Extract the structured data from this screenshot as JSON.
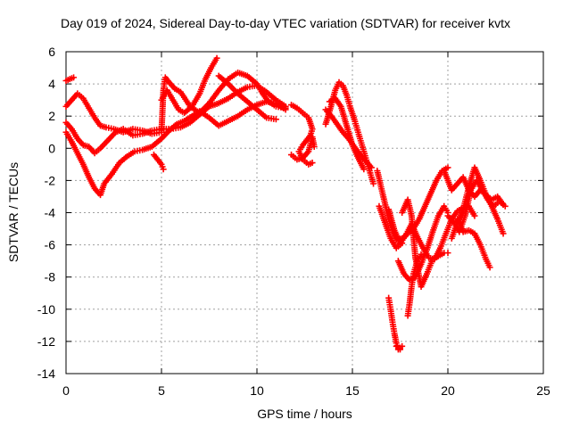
{
  "chart_data": {
    "type": "scatter",
    "title": "Day 019 of 2024, Sidereal Day-to-day VTEC variation (SDTVAR) for receiver kvtx",
    "xlabel": "GPS time / hours",
    "ylabel": "SDTVAR / TECUs",
    "xlim": [
      0,
      25
    ],
    "ylim": [
      -14,
      6
    ],
    "xticks": [
      0,
      5,
      10,
      15,
      20,
      25
    ],
    "yticks": [
      6,
      4,
      2,
      0,
      -2,
      -4,
      -6,
      -8,
      -10,
      -12,
      -14
    ],
    "grid": true,
    "marker": "+",
    "color": "#ff0000",
    "series": [
      {
        "x": [
          0.0,
          0.2,
          0.4
        ],
        "y": [
          4.2,
          4.3,
          4.4
        ]
      },
      {
        "x": [
          0.0,
          0.3,
          0.6,
          0.9,
          1.2,
          1.5,
          1.8,
          2.1,
          2.5,
          3.0,
          3.5,
          4.0,
          4.5,
          5.0,
          5.1,
          5.2,
          5.4,
          5.7,
          6.0,
          6.5,
          7.0,
          7.5,
          8.0,
          8.5,
          9.0,
          9.5,
          10.0,
          10.3,
          10.6,
          11.0,
          11.5
        ],
        "y": [
          2.6,
          3.0,
          3.4,
          3.1,
          2.5,
          1.9,
          1.4,
          1.3,
          1.2,
          1.0,
          1.2,
          1.1,
          0.9,
          1.0,
          3.6,
          4.4,
          4.1,
          3.7,
          3.5,
          2.6,
          2.2,
          2.8,
          3.6,
          4.3,
          4.7,
          4.5,
          4.0,
          3.4,
          2.9,
          2.6,
          2.5
        ]
      },
      {
        "x": [
          0.0,
          0.3,
          0.6,
          0.9,
          1.2,
          1.5,
          1.8,
          2.2,
          2.6,
          3.0,
          3.5,
          4.0,
          4.5,
          5.0,
          5.5,
          6.0,
          6.5,
          7.0,
          7.5,
          8.0,
          8.5,
          9.0,
          9.5,
          10.0,
          10.5,
          11.0,
          11.5
        ],
        "y": [
          1.6,
          1.2,
          0.6,
          0.2,
          0.1,
          -0.3,
          0.0,
          0.5,
          1.0,
          1.2,
          0.8,
          0.9,
          1.1,
          1.2,
          1.2,
          1.3,
          1.6,
          2.1,
          2.6,
          2.8,
          3.1,
          3.5,
          3.8,
          3.9,
          3.5,
          3.0,
          2.6
        ]
      },
      {
        "x": [
          0.0,
          0.3,
          0.6,
          0.9,
          1.2,
          1.5,
          1.8,
          2.0,
          2.4,
          2.8,
          3.2,
          3.6,
          4.0,
          4.5,
          5.0,
          5.4,
          5.8,
          6.2,
          6.6,
          7.0,
          7.5,
          8.0,
          8.5,
          9.0,
          9.5,
          10.0,
          10.5,
          11.0,
          11.5
        ],
        "y": [
          1.0,
          0.4,
          -0.3,
          -1.0,
          -1.8,
          -2.5,
          -2.9,
          -2.2,
          -1.6,
          -0.9,
          -0.5,
          -0.2,
          -0.1,
          0.1,
          0.6,
          1.1,
          1.5,
          1.7,
          2.0,
          2.3,
          1.9,
          1.4,
          1.7,
          2.0,
          2.4,
          2.7,
          2.9,
          2.8,
          2.4
        ]
      },
      {
        "x": [
          5.0,
          5.3,
          5.6,
          5.9,
          6.2,
          6.6,
          7.0,
          7.3,
          7.6,
          7.9
        ],
        "y": [
          3.0,
          3.6,
          3.0,
          2.4,
          2.2,
          2.6,
          3.4,
          4.3,
          5.0,
          5.6
        ]
      },
      {
        "x": [
          8.0,
          8.5,
          9.0,
          9.5,
          10.0,
          10.5,
          11.0
        ],
        "y": [
          4.5,
          4.0,
          3.4,
          2.9,
          2.4,
          1.9,
          1.8
        ]
      },
      {
        "x": [
          4.6,
          5.0,
          5.1
        ],
        "y": [
          -0.4,
          -1.0,
          -1.3
        ]
      },
      {
        "x": [
          11.8,
          12.1,
          12.4,
          12.7,
          12.9,
          12.8,
          12.4,
          12.2,
          12.4,
          12.7,
          12.9
        ],
        "y": [
          2.7,
          2.5,
          2.2,
          1.9,
          1.2,
          0.8,
          0.2,
          -0.2,
          -0.7,
          -1.0,
          -0.9
        ]
      },
      {
        "x": [
          11.8,
          12.1,
          12.4,
          12.7,
          12.9,
          13.0
        ],
        "y": [
          -0.4,
          -0.7,
          -0.6,
          -0.2,
          0.7,
          0.1
        ]
      },
      {
        "x": [
          13.6,
          13.9,
          14.1,
          14.3,
          14.5,
          14.7,
          14.9,
          15.1,
          15.3,
          15.5,
          15.7,
          15.9,
          16.1
        ],
        "y": [
          1.5,
          2.7,
          3.6,
          4.1,
          3.9,
          3.3,
          2.5,
          1.8,
          1.0,
          0.2,
          -0.6,
          -1.4,
          -2.2
        ]
      },
      {
        "x": [
          13.6,
          13.9,
          14.2,
          14.5,
          14.8,
          15.1,
          15.4,
          15.7,
          16.0
        ],
        "y": [
          2.4,
          2.0,
          1.5,
          1.0,
          0.6,
          0.1,
          -0.4,
          -0.8,
          -1.2
        ]
      },
      {
        "x": [
          13.8,
          14.1,
          14.4,
          14.7,
          15.0,
          15.3,
          15.6
        ],
        "y": [
          2.9,
          3.1,
          2.6,
          1.4,
          0.2,
          -0.6,
          -1.3
        ]
      },
      {
        "x": [
          16.3,
          16.5,
          16.7,
          16.9,
          17.1,
          17.3,
          17.6,
          17.9,
          18.2,
          18.5,
          18.8,
          19.1,
          19.4,
          19.7,
          20.0
        ],
        "y": [
          -1.4,
          -2.4,
          -3.4,
          -4.4,
          -5.2,
          -5.7,
          -5.6,
          -5.3,
          -5.0,
          -4.4,
          -3.6,
          -2.8,
          -2.0,
          -1.4,
          -1.2
        ]
      },
      {
        "x": [
          16.9,
          17.2,
          17.5,
          17.8,
          18.1,
          18.4,
          18.7,
          19.0,
          19.3,
          19.6,
          19.9,
          20.2,
          20.5,
          20.8,
          21.1,
          21.4
        ],
        "y": [
          -3.8,
          -5.1,
          -5.9,
          -5.4,
          -4.7,
          -5.5,
          -6.2,
          -6.8,
          -6.9,
          -6.2,
          -5.3,
          -4.4,
          -3.9,
          -3.7,
          -3.6,
          -4.2
        ]
      },
      {
        "x": [
          16.4,
          16.7,
          17.0,
          17.3,
          17.6
        ],
        "y": [
          -3.6,
          -4.6,
          -5.6,
          -6.2,
          -5.9
        ]
      },
      {
        "x": [
          17.6,
          17.9,
          18.1,
          18.3,
          18.6,
          18.9,
          19.2,
          19.5,
          19.8,
          20.0
        ],
        "y": [
          -4.0,
          -3.2,
          -4.2,
          -6.8,
          -8.6,
          -7.8,
          -6.9,
          -6.7,
          -6.5,
          -6.5
        ]
      },
      {
        "x": [
          17.4,
          17.7,
          18.0,
          18.3,
          18.6,
          18.9,
          19.2,
          19.5,
          19.8,
          20.0
        ],
        "y": [
          -7.0,
          -7.8,
          -8.2,
          -8.0,
          -7.2,
          -6.3,
          -5.2,
          -4.2,
          -3.6,
          -4.0
        ]
      },
      {
        "x": [
          16.9,
          17.0,
          17.1,
          17.2,
          17.3,
          17.4,
          17.5
        ],
        "y": [
          -9.3,
          -10.0,
          -10.8,
          -11.5,
          -12.1,
          -12.4,
          -12.5
        ]
      },
      {
        "x": [
          17.3,
          17.4,
          17.5,
          17.6
        ],
        "y": [
          -12.3,
          -12.5,
          -12.4,
          -12.3
        ]
      },
      {
        "x": [
          17.9,
          18.0,
          18.1,
          18.2,
          18.4,
          18.6
        ],
        "y": [
          -10.4,
          -9.6,
          -8.6,
          -7.8,
          -7.0,
          -6.6
        ]
      },
      {
        "x": [
          20.0,
          20.3,
          20.6,
          20.9,
          21.2,
          21.5,
          21.8,
          22.1,
          22.4,
          22.7,
          23.0
        ],
        "y": [
          -4.2,
          -4.6,
          -5.2,
          -4.2,
          -2.6,
          -2.0,
          -2.6,
          -3.2,
          -3.6,
          -3.3,
          -3.6
        ]
      },
      {
        "x": [
          20.2,
          20.5,
          20.8,
          21.1,
          21.4,
          21.7,
          22.0,
          22.3,
          22.6,
          22.9
        ],
        "y": [
          -5.6,
          -4.6,
          -3.8,
          -2.4,
          -1.2,
          -2.0,
          -2.9,
          -3.6,
          -4.4,
          -5.3
        ]
      },
      {
        "x": [
          19.8,
          20.2,
          20.5,
          20.8,
          21.1,
          21.4,
          21.7,
          22.0,
          22.3,
          22.6,
          22.9
        ],
        "y": [
          -1.4,
          -2.6,
          -2.2,
          -1.8,
          -2.6,
          -3.0,
          -2.6,
          -2.9,
          -3.2,
          -3.0,
          -3.5
        ]
      },
      {
        "x": [
          20.5,
          20.8,
          21.1,
          21.4,
          21.7,
          22.0,
          22.2
        ],
        "y": [
          -4.4,
          -5.2,
          -5.1,
          -5.3,
          -6.0,
          -6.9,
          -7.4
        ]
      }
    ]
  }
}
